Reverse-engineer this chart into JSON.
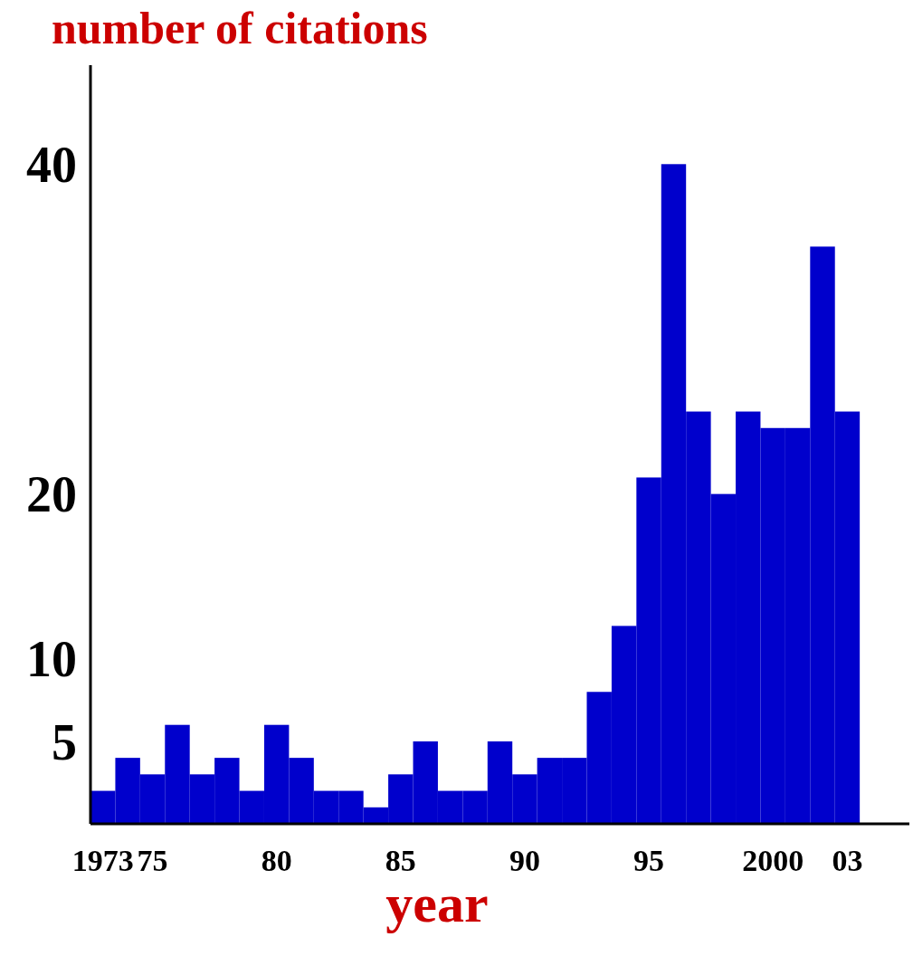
{
  "chart_data": {
    "type": "bar",
    "title": "number of citations",
    "xlabel": "year",
    "color": "#0000cc",
    "x": [
      1973,
      1974,
      1975,
      1976,
      1977,
      1978,
      1979,
      1980,
      1981,
      1982,
      1983,
      1984,
      1985,
      1986,
      1987,
      1988,
      1989,
      1990,
      1991,
      1992,
      1993,
      1994,
      1995,
      1996,
      1997,
      1998,
      1999,
      2000,
      2001,
      2002,
      2003
    ],
    "values": [
      2,
      4,
      3,
      6,
      3,
      4,
      2,
      6,
      4,
      2,
      2,
      1,
      3,
      5,
      2,
      2,
      5,
      3,
      4,
      4,
      8,
      12,
      21,
      40,
      25,
      20,
      25,
      24,
      24,
      35,
      25
    ],
    "xlim": [
      1972.5,
      2005.5
    ],
    "xticks": [
      {
        "value": 1973,
        "label": "1973"
      },
      {
        "value": 1975,
        "label": "75"
      },
      {
        "value": 1980,
        "label": "80"
      },
      {
        "value": 1985,
        "label": "85"
      },
      {
        "value": 1990,
        "label": "90"
      },
      {
        "value": 1995,
        "label": "95"
      },
      {
        "value": 2000,
        "label": "2000"
      },
      {
        "value": 2003,
        "label": "03"
      }
    ],
    "ylim": [
      0,
      46
    ],
    "yticks": [
      5,
      10,
      20,
      40
    ],
    "grid": false
  }
}
